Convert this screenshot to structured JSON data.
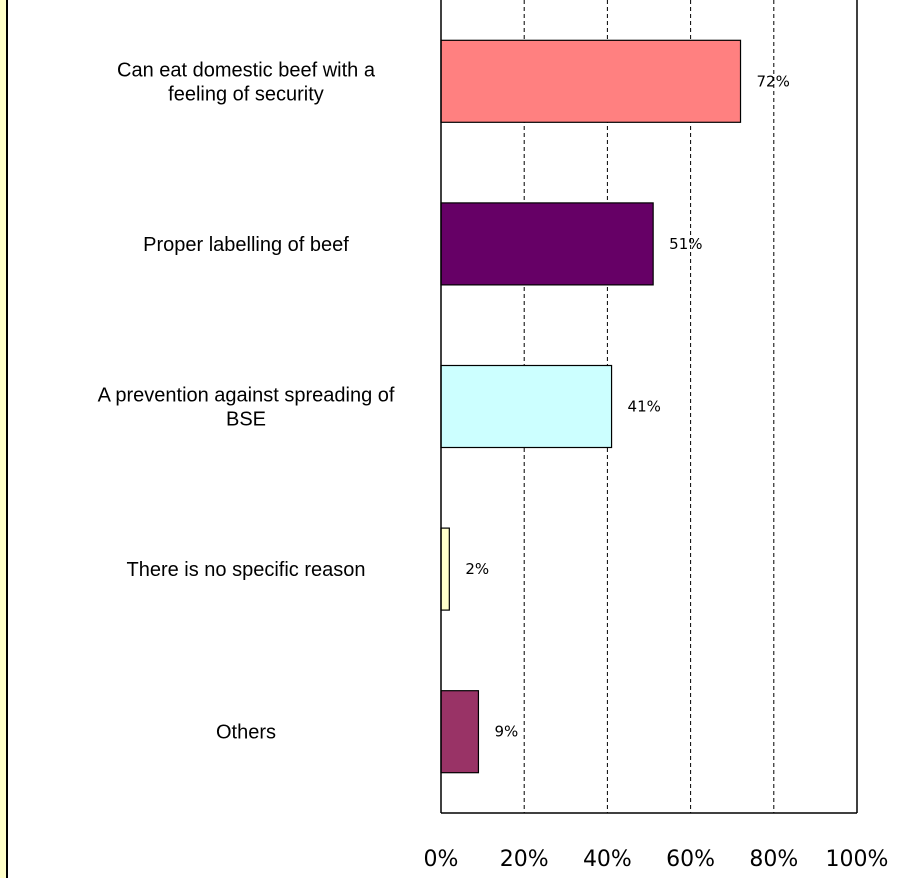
{
  "chart_data": {
    "type": "bar",
    "orientation": "horizontal",
    "categories": [
      [
        "Can eat domestic beef with a",
        "feeling of security"
      ],
      [
        "Proper labelling of beef"
      ],
      [
        "A prevention against spreading of",
        "BSE"
      ],
      [
        "There is no specific reason"
      ],
      [
        "Others"
      ]
    ],
    "values": [
      72,
      51,
      41,
      2,
      9
    ],
    "data_labels": [
      "72%",
      "51%",
      "41%",
      "2%",
      "9%"
    ],
    "bar_colors": [
      "#ff8080",
      "#660066",
      "#ccffff",
      "#ffffcc",
      "#993366"
    ],
    "x_ticks": [
      "0%",
      "20%",
      "40%",
      "60%",
      "80%",
      "100%"
    ],
    "xlim": [
      0,
      100
    ],
    "grid": "vertical dashed",
    "title": "",
    "xlabel": "",
    "ylabel": ""
  }
}
